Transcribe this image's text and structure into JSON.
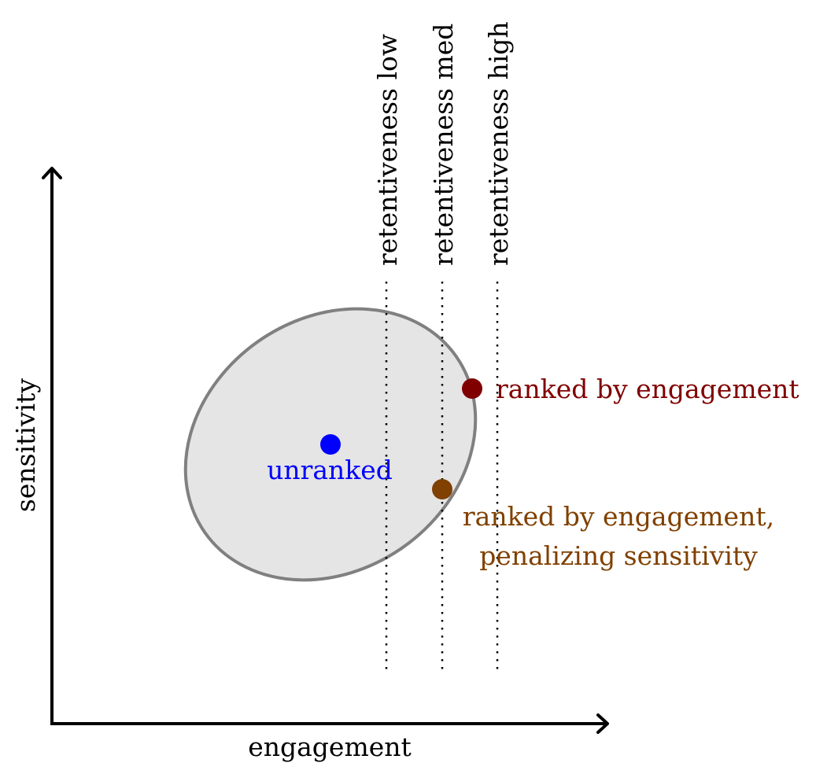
{
  "axes": {
    "x_label": "engagement",
    "y_label": "sensitivity"
  },
  "thresholds": [
    {
      "label": "retentiveness low"
    },
    {
      "label": "retentiveness med"
    },
    {
      "label": "retentiveness high"
    }
  ],
  "points": {
    "unranked": {
      "label": "unranked",
      "color": "#0000ff"
    },
    "ranked_engagement": {
      "label": "ranked by engagement",
      "color": "#800000"
    },
    "ranked_penalized": {
      "label_line1": "ranked by engagement,",
      "label_line2": "penalizing sensitivity",
      "color": "#804000"
    }
  },
  "colors": {
    "ellipse_fill": "#e5e5e5",
    "ellipse_stroke": "#808080",
    "axis": "#000000"
  }
}
